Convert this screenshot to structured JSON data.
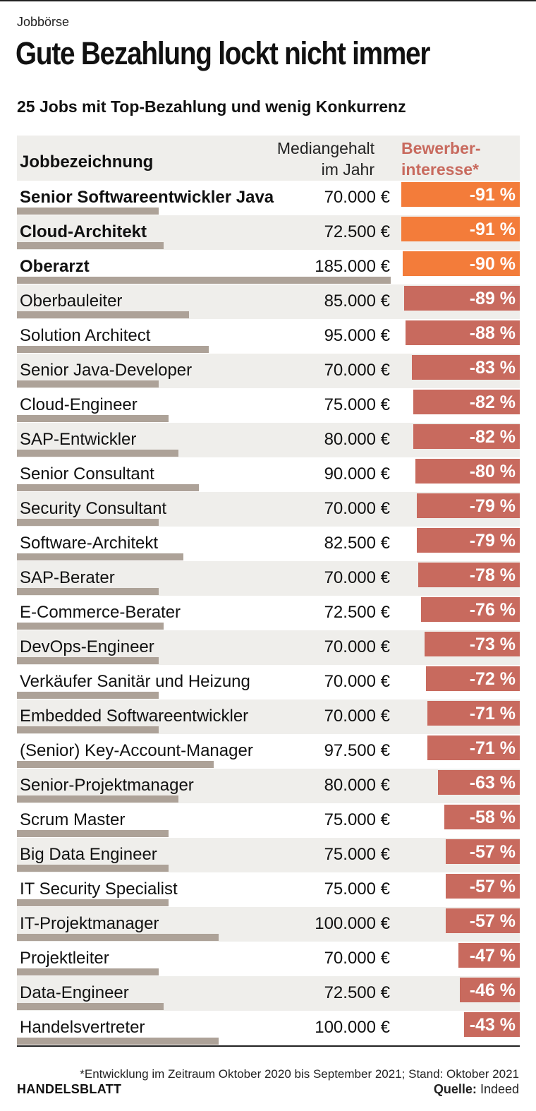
{
  "kicker": "Jobbörse",
  "title": "Gute Bezahlung lockt nicht immer",
  "subtitle": "25 Jobs mit Top-Bezahlung und wenig Konkurrenz",
  "footnote": "*Entwicklung im Zeitraum Oktober 2020 bis September 2021; Stand: Oktober 2021",
  "brand": "HANDELSBLATT",
  "source_label": "Quelle:",
  "source_value": "Indeed",
  "colors": {
    "highlight": "#f37c3a",
    "normal": "#c86a5e",
    "salary_bar": "#ada298",
    "row_shade": "#efeeeb"
  },
  "chart_data": {
    "type": "table",
    "columns": {
      "job": "Jobbezeichnung",
      "salary_line1": "Mediangehalt",
      "salary_line2": "im Jahr",
      "interest_line1": "Bewerber-",
      "interest_line2": "interesse*"
    },
    "salary_unit": "€",
    "rows": [
      {
        "job": "Senior Softwareentwickler Java",
        "salary": 70000,
        "salary_label": "70.000 €",
        "interest": -91,
        "interest_label": "-91 %",
        "highlight": true
      },
      {
        "job": "Cloud-Architekt",
        "salary": 72500,
        "salary_label": "72.500 €",
        "interest": -91,
        "interest_label": "-91 %",
        "highlight": true
      },
      {
        "job": "Oberarzt",
        "salary": 185000,
        "salary_label": "185.000 €",
        "interest": -90,
        "interest_label": "-90 %",
        "highlight": true
      },
      {
        "job": "Oberbauleiter",
        "salary": 85000,
        "salary_label": "85.000 €",
        "interest": -89,
        "interest_label": "-89 %",
        "highlight": false
      },
      {
        "job": "Solution Architect",
        "salary": 95000,
        "salary_label": "95.000 €",
        "interest": -88,
        "interest_label": "-88 %",
        "highlight": false
      },
      {
        "job": "Senior Java-Developer",
        "salary": 70000,
        "salary_label": "70.000 €",
        "interest": -83,
        "interest_label": "-83 %",
        "highlight": false
      },
      {
        "job": "Cloud-Engineer",
        "salary": 75000,
        "salary_label": "75.000 €",
        "interest": -82,
        "interest_label": "-82 %",
        "highlight": false
      },
      {
        "job": "SAP-Entwickler",
        "salary": 80000,
        "salary_label": "80.000 €",
        "interest": -82,
        "interest_label": "-82 %",
        "highlight": false
      },
      {
        "job": "Senior Consultant",
        "salary": 90000,
        "salary_label": "90.000 €",
        "interest": -80,
        "interest_label": "-80 %",
        "highlight": false
      },
      {
        "job": "Security Consultant",
        "salary": 70000,
        "salary_label": "70.000 €",
        "interest": -79,
        "interest_label": "-79 %",
        "highlight": false
      },
      {
        "job": "Software-Architekt",
        "salary": 82500,
        "salary_label": "82.500 €",
        "interest": -79,
        "interest_label": "-79 %",
        "highlight": false
      },
      {
        "job": "SAP-Berater",
        "salary": 70000,
        "salary_label": "70.000 €",
        "interest": -78,
        "interest_label": "-78 %",
        "highlight": false
      },
      {
        "job": "E-Commerce-Berater",
        "salary": 72500,
        "salary_label": "72.500 €",
        "interest": -76,
        "interest_label": "-76 %",
        "highlight": false
      },
      {
        "job": "DevOps-Engineer",
        "salary": 70000,
        "salary_label": "70.000 €",
        "interest": -73,
        "interest_label": "-73 %",
        "highlight": false
      },
      {
        "job": "Verkäufer Sanitär und Heizung",
        "salary": 70000,
        "salary_label": "70.000 €",
        "interest": -72,
        "interest_label": "-72 %",
        "highlight": false
      },
      {
        "job": "Embedded Softwareentwickler",
        "salary": 70000,
        "salary_label": "70.000 €",
        "interest": -71,
        "interest_label": "-71 %",
        "highlight": false
      },
      {
        "job": "(Senior) Key-Account-Manager",
        "salary": 97500,
        "salary_label": "97.500 €",
        "interest": -71,
        "interest_label": "-71 %",
        "highlight": false
      },
      {
        "job": "Senior-Projektmanager",
        "salary": 80000,
        "salary_label": "80.000 €",
        "interest": -63,
        "interest_label": "-63 %",
        "highlight": false
      },
      {
        "job": "Scrum Master",
        "salary": 75000,
        "salary_label": "75.000 €",
        "interest": -58,
        "interest_label": "-58 %",
        "highlight": false
      },
      {
        "job": "Big Data Engineer",
        "salary": 75000,
        "salary_label": "75.000 €",
        "interest": -57,
        "interest_label": "-57 %",
        "highlight": false
      },
      {
        "job": "IT Security Specialist",
        "salary": 75000,
        "salary_label": "75.000 €",
        "interest": -57,
        "interest_label": "-57 %",
        "highlight": false
      },
      {
        "job": "IT-Projektmanager",
        "salary": 100000,
        "salary_label": "100.000 €",
        "interest": -57,
        "interest_label": "-57 %",
        "highlight": false
      },
      {
        "job": "Projektleiter",
        "salary": 70000,
        "salary_label": "70.000 €",
        "interest": -47,
        "interest_label": "-47 %",
        "highlight": false
      },
      {
        "job": "Data-Engineer",
        "salary": 72500,
        "salary_label": "72.500 €",
        "interest": -46,
        "interest_label": "-46 %",
        "highlight": false
      },
      {
        "job": "Handelsvertreter",
        "salary": 100000,
        "salary_label": "100.000 €",
        "interest": -43,
        "interest_label": "-43 %",
        "highlight": false
      }
    ]
  }
}
